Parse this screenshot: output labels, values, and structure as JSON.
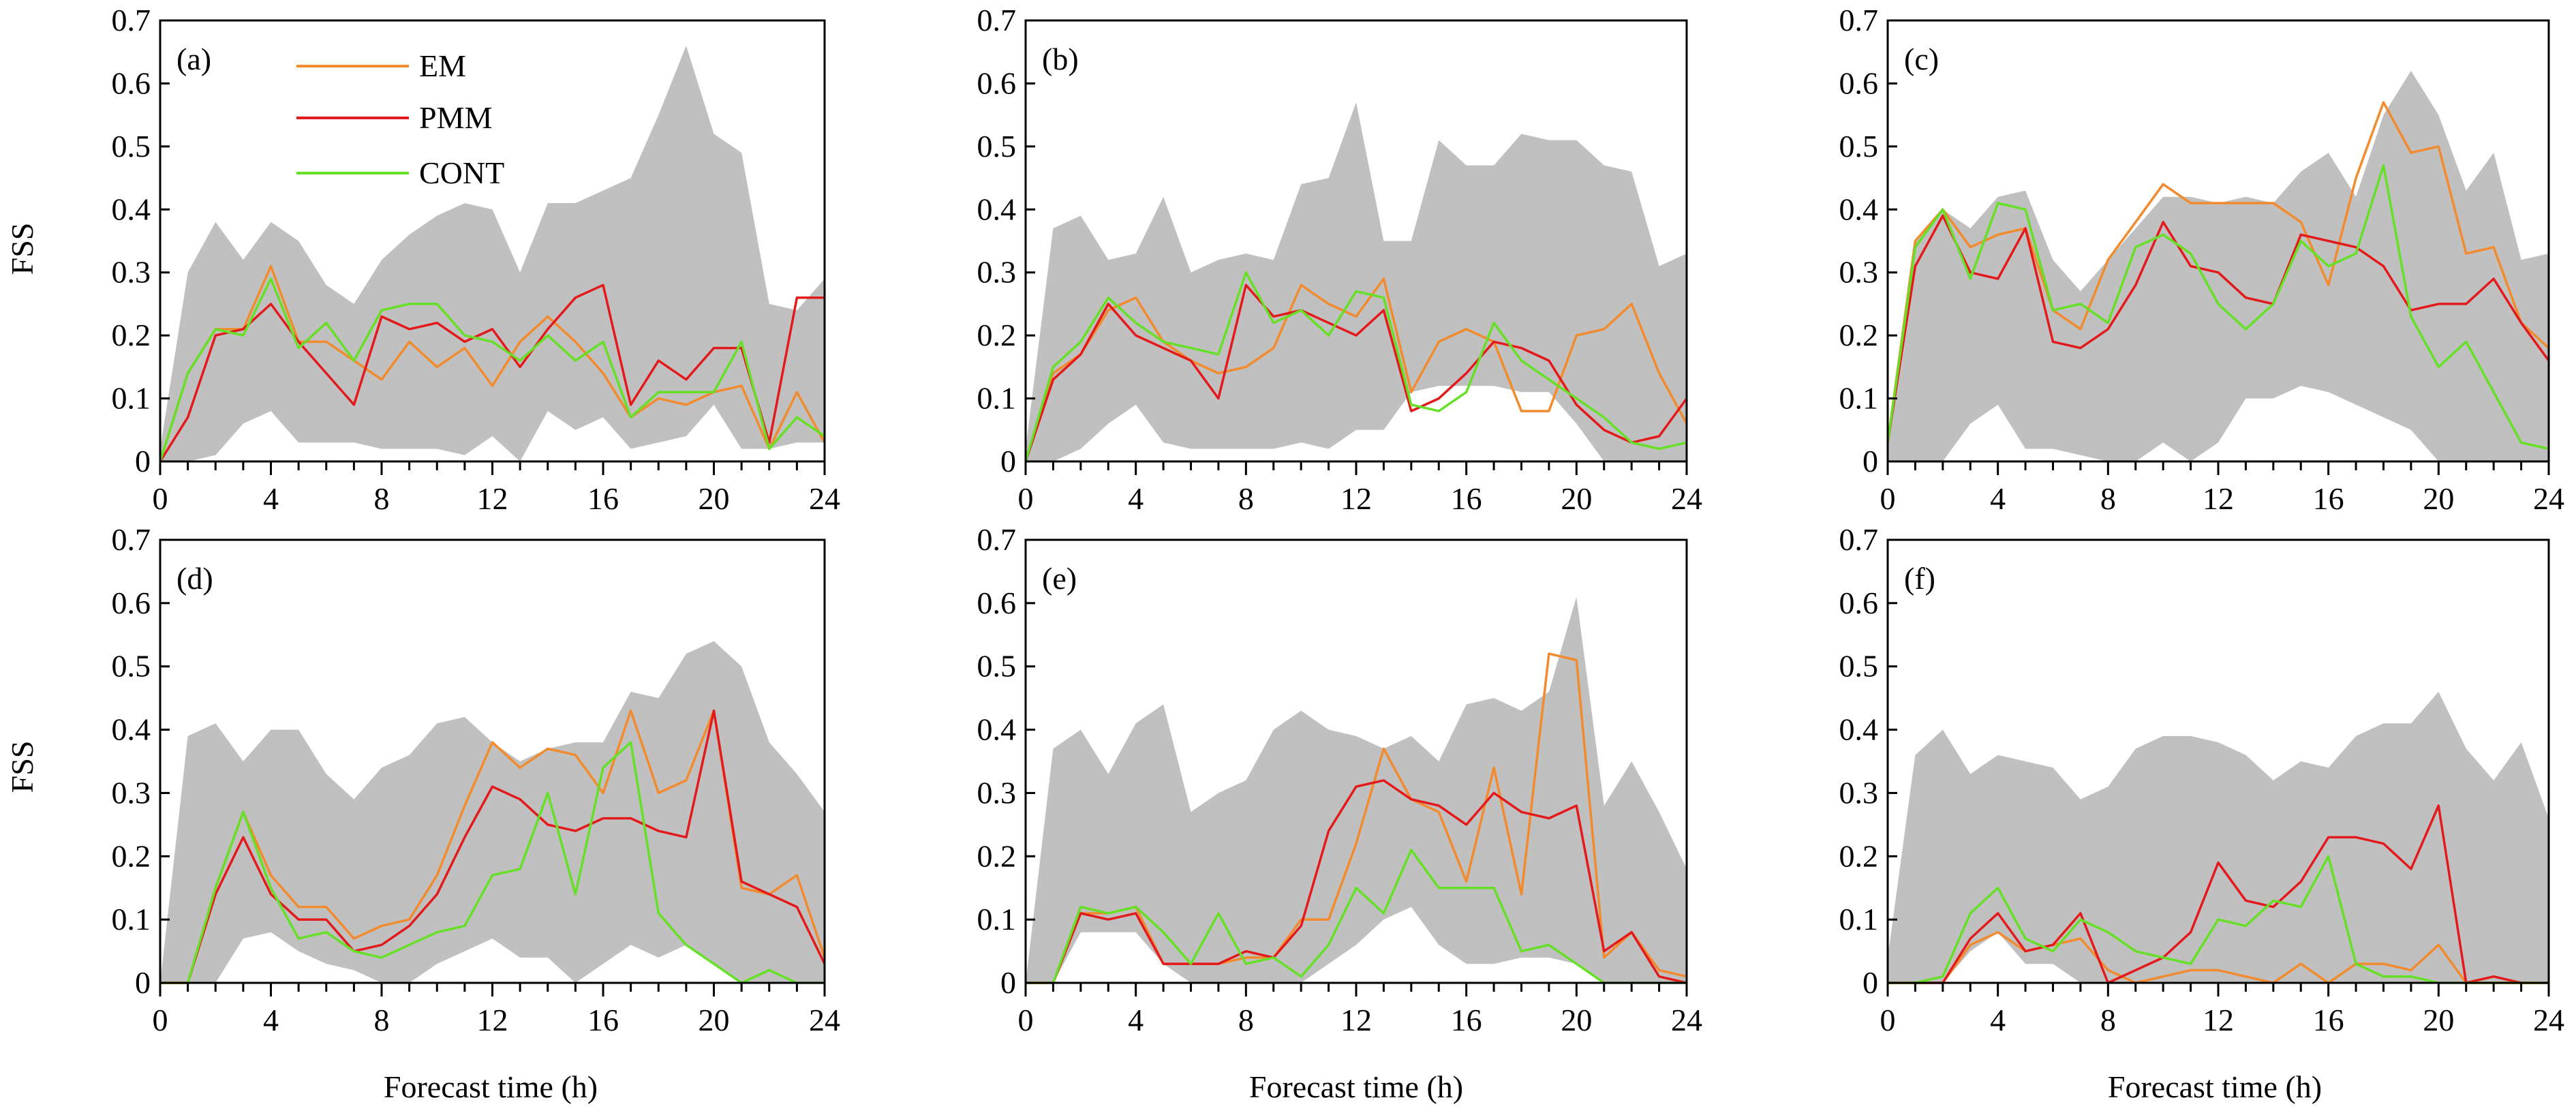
{
  "figure": {
    "ylabel": "FSS",
    "xlabel": "Forecast time (h)",
    "legend": [
      "EM",
      "PMM",
      "CONT"
    ]
  },
  "colors": {
    "EM": "#f28a2e",
    "PMM": "#e31a1c",
    "CONT": "#66e026",
    "band": "#c0c0c0"
  },
  "chart_data": [
    {
      "type": "line",
      "label": "(a)",
      "xlim": [
        0,
        24
      ],
      "ylim": [
        0,
        0.7
      ],
      "xticks": [
        0,
        4,
        8,
        12,
        16,
        20,
        24
      ],
      "yticks": [
        0,
        0.1,
        0.2,
        0.3,
        0.4,
        0.5,
        0.6,
        0.7
      ],
      "band_upper": [
        0.02,
        0.3,
        0.38,
        0.32,
        0.38,
        0.35,
        0.28,
        0.25,
        0.32,
        0.36,
        0.39,
        0.41,
        0.4,
        0.3,
        0.41,
        0.41,
        0.43,
        0.45,
        0.55,
        0.66,
        0.52,
        0.49,
        0.25,
        0.24,
        0.29
      ],
      "band_lower": [
        0,
        0,
        0.01,
        0.06,
        0.08,
        0.03,
        0.03,
        0.03,
        0.02,
        0.02,
        0.02,
        0.01,
        0.04,
        0,
        0.08,
        0.05,
        0.07,
        0.02,
        0.03,
        0.04,
        0.09,
        0.02,
        0.02,
        0.03,
        0.03
      ],
      "series": [
        {
          "name": "EM",
          "values": [
            0,
            0.14,
            0.21,
            0.21,
            0.31,
            0.19,
            0.19,
            0.16,
            0.13,
            0.19,
            0.15,
            0.18,
            0.12,
            0.19,
            0.23,
            0.19,
            0.14,
            0.07,
            0.1,
            0.09,
            0.11,
            0.12,
            0.02,
            0.11,
            0.03
          ]
        },
        {
          "name": "PMM",
          "values": [
            0,
            0.07,
            0.2,
            0.21,
            0.25,
            0.19,
            0.14,
            0.09,
            0.23,
            0.21,
            0.22,
            0.19,
            0.21,
            0.15,
            0.21,
            0.26,
            0.28,
            0.09,
            0.16,
            0.13,
            0.18,
            0.18,
            0.03,
            0.26,
            0.26
          ]
        },
        {
          "name": "CONT",
          "values": [
            0,
            0.14,
            0.21,
            0.2,
            0.29,
            0.18,
            0.22,
            0.16,
            0.24,
            0.25,
            0.25,
            0.2,
            0.19,
            0.16,
            0.2,
            0.16,
            0.19,
            0.07,
            0.11,
            0.11,
            0.11,
            0.19,
            0.02,
            0.07,
            0.04
          ]
        }
      ]
    },
    {
      "type": "line",
      "label": "(b)",
      "xlim": [
        0,
        24
      ],
      "ylim": [
        0,
        0.7
      ],
      "xticks": [
        0,
        4,
        8,
        12,
        16,
        20,
        24
      ],
      "yticks": [
        0,
        0.1,
        0.2,
        0.3,
        0.4,
        0.5,
        0.6,
        0.7
      ],
      "band_upper": [
        0.02,
        0.37,
        0.39,
        0.32,
        0.33,
        0.42,
        0.3,
        0.32,
        0.33,
        0.32,
        0.44,
        0.45,
        0.57,
        0.35,
        0.35,
        0.51,
        0.47,
        0.47,
        0.52,
        0.51,
        0.51,
        0.47,
        0.46,
        0.31,
        0.33
      ],
      "band_lower": [
        0,
        0,
        0.02,
        0.06,
        0.09,
        0.03,
        0.02,
        0.02,
        0.02,
        0.02,
        0.03,
        0.02,
        0.05,
        0.05,
        0.11,
        0.12,
        0.12,
        0.12,
        0.11,
        0.11,
        0.06,
        0,
        0,
        0,
        0
      ],
      "series": [
        {
          "name": "EM",
          "values": [
            0,
            0.14,
            0.17,
            0.24,
            0.26,
            0.19,
            0.16,
            0.14,
            0.15,
            0.18,
            0.28,
            0.25,
            0.23,
            0.29,
            0.11,
            0.19,
            0.21,
            0.19,
            0.08,
            0.08,
            0.2,
            0.21,
            0.25,
            0.14,
            0.06
          ]
        },
        {
          "name": "PMM",
          "values": [
            0,
            0.13,
            0.17,
            0.25,
            0.2,
            0.18,
            0.16,
            0.1,
            0.28,
            0.23,
            0.24,
            0.22,
            0.2,
            0.24,
            0.08,
            0.1,
            0.14,
            0.19,
            0.18,
            0.16,
            0.09,
            0.05,
            0.03,
            0.04,
            0.1
          ]
        },
        {
          "name": "CONT",
          "values": [
            0,
            0.15,
            0.19,
            0.26,
            0.22,
            0.19,
            0.18,
            0.17,
            0.3,
            0.22,
            0.24,
            0.2,
            0.27,
            0.26,
            0.09,
            0.08,
            0.11,
            0.22,
            0.16,
            0.13,
            0.1,
            0.07,
            0.03,
            0.02,
            0.03
          ]
        }
      ]
    },
    {
      "type": "line",
      "label": "(c)",
      "xlim": [
        0,
        24
      ],
      "ylim": [
        0,
        0.7
      ],
      "xticks": [
        0,
        4,
        8,
        12,
        16,
        20,
        24
      ],
      "yticks": [
        0,
        0.1,
        0.2,
        0.3,
        0.4,
        0.5,
        0.6,
        0.7
      ],
      "band_upper": [
        0.03,
        0.35,
        0.4,
        0.37,
        0.42,
        0.43,
        0.32,
        0.27,
        0.32,
        0.37,
        0.42,
        0.42,
        0.41,
        0.42,
        0.41,
        0.46,
        0.49,
        0.42,
        0.55,
        0.62,
        0.55,
        0.43,
        0.49,
        0.32,
        0.33
      ],
      "band_lower": [
        0,
        0,
        0,
        0.06,
        0.09,
        0.02,
        0.02,
        0.01,
        0,
        0,
        0.03,
        0,
        0.03,
        0.1,
        0.1,
        0.12,
        0.11,
        0.09,
        0.07,
        0.05,
        0,
        0,
        0,
        0,
        0
      ],
      "series": [
        {
          "name": "EM",
          "values": [
            0.03,
            0.35,
            0.4,
            0.34,
            0.36,
            0.37,
            0.24,
            0.21,
            0.32,
            0.38,
            0.44,
            0.41,
            0.41,
            0.41,
            0.41,
            0.38,
            0.28,
            0.45,
            0.57,
            0.49,
            0.5,
            0.33,
            0.34,
            0.22,
            0.18
          ]
        },
        {
          "name": "PMM",
          "values": [
            0.03,
            0.31,
            0.39,
            0.3,
            0.29,
            0.37,
            0.19,
            0.18,
            0.21,
            0.28,
            0.38,
            0.31,
            0.3,
            0.26,
            0.25,
            0.36,
            0.35,
            0.34,
            0.31,
            0.24,
            0.25,
            0.25,
            0.29,
            0.22,
            0.16
          ]
        },
        {
          "name": "CONT",
          "values": [
            0.03,
            0.34,
            0.4,
            0.29,
            0.41,
            0.4,
            0.24,
            0.25,
            0.22,
            0.34,
            0.36,
            0.33,
            0.25,
            0.21,
            0.25,
            0.35,
            0.31,
            0.33,
            0.47,
            0.23,
            0.15,
            0.19,
            0.11,
            0.03,
            0.02
          ]
        }
      ]
    },
    {
      "type": "line",
      "label": "(d)",
      "xlim": [
        0,
        24
      ],
      "ylim": [
        0,
        0.7
      ],
      "xticks": [
        0,
        4,
        8,
        12,
        16,
        20,
        24
      ],
      "yticks": [
        0,
        0.1,
        0.2,
        0.3,
        0.4,
        0.5,
        0.6,
        0.7
      ],
      "band_upper": [
        0,
        0.39,
        0.41,
        0.35,
        0.4,
        0.4,
        0.33,
        0.29,
        0.34,
        0.36,
        0.41,
        0.42,
        0.38,
        0.35,
        0.37,
        0.38,
        0.38,
        0.46,
        0.45,
        0.52,
        0.54,
        0.5,
        0.38,
        0.33,
        0.27
      ],
      "band_lower": [
        0,
        0,
        0,
        0.07,
        0.08,
        0.05,
        0.03,
        0.02,
        0,
        0,
        0.03,
        0.05,
        0.07,
        0.04,
        0.04,
        0,
        0.03,
        0.06,
        0.04,
        0.06,
        0.03,
        0,
        0,
        0,
        0
      ],
      "series": [
        {
          "name": "EM",
          "values": [
            0,
            0,
            0.15,
            0.27,
            0.17,
            0.12,
            0.12,
            0.07,
            0.09,
            0.1,
            0.17,
            0.28,
            0.38,
            0.34,
            0.37,
            0.36,
            0.3,
            0.43,
            0.3,
            0.32,
            0.43,
            0.15,
            0.14,
            0.17,
            0.04
          ]
        },
        {
          "name": "PMM",
          "values": [
            0,
            0,
            0.14,
            0.23,
            0.14,
            0.1,
            0.1,
            0.05,
            0.06,
            0.09,
            0.14,
            0.23,
            0.31,
            0.29,
            0.25,
            0.24,
            0.26,
            0.26,
            0.24,
            0.23,
            0.43,
            0.16,
            0.14,
            0.12,
            0.03
          ]
        },
        {
          "name": "CONT",
          "values": [
            0,
            0,
            0.15,
            0.27,
            0.15,
            0.07,
            0.08,
            0.05,
            0.04,
            0.06,
            0.08,
            0.09,
            0.17,
            0.18,
            0.3,
            0.14,
            0.34,
            0.38,
            0.11,
            0.06,
            0.03,
            0,
            0.02,
            0,
            0
          ]
        }
      ]
    },
    {
      "type": "line",
      "label": "(e)",
      "xlim": [
        0,
        24
      ],
      "ylim": [
        0,
        0.7
      ],
      "xticks": [
        0,
        4,
        8,
        12,
        16,
        20,
        24
      ],
      "yticks": [
        0,
        0.1,
        0.2,
        0.3,
        0.4,
        0.5,
        0.6,
        0.7
      ],
      "band_upper": [
        0,
        0.37,
        0.4,
        0.33,
        0.41,
        0.44,
        0.27,
        0.3,
        0.32,
        0.4,
        0.43,
        0.4,
        0.39,
        0.37,
        0.39,
        0.35,
        0.44,
        0.45,
        0.43,
        0.46,
        0.61,
        0.28,
        0.35,
        0.27,
        0.18
      ],
      "band_lower": [
        0,
        0,
        0.08,
        0.08,
        0.08,
        0.03,
        0,
        0,
        0,
        0,
        0,
        0.03,
        0.06,
        0.1,
        0.12,
        0.06,
        0.03,
        0.03,
        0.04,
        0.04,
        0.03,
        0,
        0,
        0,
        0
      ],
      "series": [
        {
          "name": "EM",
          "values": [
            0,
            0,
            0.11,
            0.11,
            0.12,
            0.03,
            0.03,
            0.03,
            0.04,
            0.04,
            0.1,
            0.1,
            0.22,
            0.37,
            0.29,
            0.27,
            0.16,
            0.34,
            0.14,
            0.52,
            0.51,
            0.04,
            0.08,
            0.02,
            0.01
          ]
        },
        {
          "name": "PMM",
          "values": [
            0,
            0,
            0.11,
            0.1,
            0.11,
            0.03,
            0.03,
            0.03,
            0.05,
            0.04,
            0.09,
            0.24,
            0.31,
            0.32,
            0.29,
            0.28,
            0.25,
            0.3,
            0.27,
            0.26,
            0.28,
            0.05,
            0.08,
            0.01,
            0
          ]
        },
        {
          "name": "CONT",
          "values": [
            0,
            0,
            0.12,
            0.11,
            0.12,
            0.08,
            0.03,
            0.11,
            0.03,
            0.04,
            0.01,
            0.06,
            0.15,
            0.11,
            0.21,
            0.15,
            0.15,
            0.15,
            0.05,
            0.06,
            0.03,
            0,
            0,
            0,
            0
          ]
        }
      ]
    },
    {
      "type": "line",
      "label": "(f)",
      "xlim": [
        0,
        24
      ],
      "ylim": [
        0,
        0.7
      ],
      "xticks": [
        0,
        4,
        8,
        12,
        16,
        20,
        24
      ],
      "yticks": [
        0,
        0.1,
        0.2,
        0.3,
        0.4,
        0.5,
        0.6,
        0.7
      ],
      "band_upper": [
        0.04,
        0.36,
        0.4,
        0.33,
        0.36,
        0.35,
        0.34,
        0.29,
        0.31,
        0.37,
        0.39,
        0.39,
        0.38,
        0.36,
        0.32,
        0.35,
        0.34,
        0.39,
        0.41,
        0.41,
        0.46,
        0.37,
        0.32,
        0.38,
        0.26
      ],
      "band_lower": [
        0,
        0,
        0,
        0.05,
        0.08,
        0.03,
        0.03,
        0,
        0,
        0,
        0,
        0,
        0,
        0,
        0,
        0,
        0,
        0,
        0,
        0,
        0,
        0,
        0,
        0,
        0
      ],
      "series": [
        {
          "name": "EM",
          "values": [
            0,
            0,
            0,
            0.06,
            0.08,
            0.05,
            0.06,
            0.07,
            0.02,
            0,
            0.01,
            0.02,
            0.02,
            0.01,
            0,
            0.03,
            0,
            0.03,
            0.03,
            0.02,
            0.06,
            0,
            0,
            0,
            0
          ]
        },
        {
          "name": "PMM",
          "values": [
            0,
            0,
            0,
            0.07,
            0.11,
            0.05,
            0.06,
            0.11,
            0,
            0.02,
            0.04,
            0.08,
            0.19,
            0.13,
            0.12,
            0.16,
            0.23,
            0.23,
            0.22,
            0.18,
            0.28,
            0,
            0.01,
            0,
            0
          ]
        },
        {
          "name": "CONT",
          "values": [
            0,
            0,
            0.01,
            0.11,
            0.15,
            0.07,
            0.05,
            0.1,
            0.08,
            0.05,
            0.04,
            0.03,
            0.1,
            0.09,
            0.13,
            0.12,
            0.2,
            0.03,
            0.01,
            0.01,
            0,
            0,
            0,
            0,
            0
          ]
        }
      ]
    }
  ]
}
